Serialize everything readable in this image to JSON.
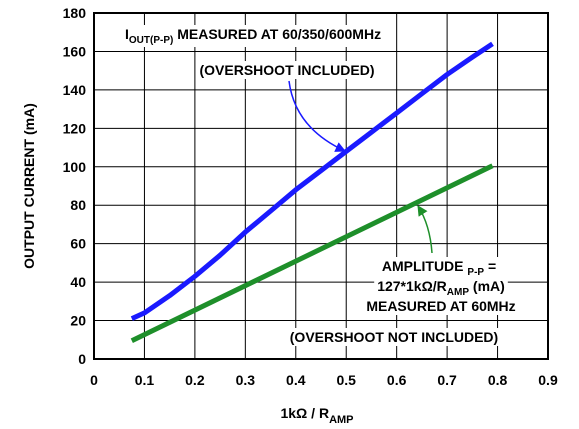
{
  "chart_data": {
    "type": "line",
    "xlabel": {
      "main": "1kΩ / R",
      "sub": "AMP"
    },
    "ylabel": "OUTPUT CURRENT (mA)",
    "xlim": [
      0,
      0.9
    ],
    "ylim": [
      0,
      180
    ],
    "x_ticks": [
      0,
      0.1,
      0.2,
      0.3,
      0.4,
      0.5,
      0.6,
      0.7,
      0.8,
      0.9
    ],
    "x_tick_labels": [
      "0",
      "0.1",
      "0.2",
      "0.3",
      "0.4",
      "0.5",
      "0.6",
      "0.7",
      "0.8",
      "0.9"
    ],
    "y_ticks": [
      0,
      20,
      40,
      60,
      80,
      100,
      120,
      140,
      160,
      180
    ],
    "y_tick_labels": [
      "0",
      "20",
      "40",
      "60",
      "80",
      "100",
      "120",
      "140",
      "160",
      "180"
    ],
    "grid": true,
    "series": [
      {
        "name": "",
        "color": "#1a1aff",
        "x": [
          0.075,
          0.1,
          0.15,
          0.2,
          0.25,
          0.3,
          0.35,
          0.4,
          0.45,
          0.5,
          0.55,
          0.6,
          0.65,
          0.7,
          0.75,
          0.79
        ],
        "y": [
          21,
          24,
          33,
          43,
          54,
          66,
          77,
          88,
          98,
          108,
          118,
          128,
          138,
          148,
          157,
          164
        ]
      },
      {
        "name": "",
        "color": "#1e8f2a",
        "x": [
          0.075,
          0.79
        ],
        "y": [
          9.5,
          100.5
        ]
      }
    ],
    "annotations": [
      {
        "id": "blue",
        "lines": [
          {
            "parts": [
              {
                "text": "I",
                "sub": false
              },
              {
                "text": "OUT(P-P)",
                "sub": true
              },
              {
                "text": " MEASURED AT 60/350/600MHz",
                "sub": false
              }
            ]
          },
          {
            "parts": [
              {
                "text": "(OVERSHOOT INCLUDED)",
                "sub": false
              }
            ]
          }
        ]
      },
      {
        "id": "green",
        "lines": [
          {
            "parts": [
              {
                "text": "AMPLITUDE ",
                "sub": false
              },
              {
                "text": "P-P",
                "sub": true
              },
              {
                "text": " =",
                "sub": false
              }
            ]
          },
          {
            "parts": [
              {
                "text": "127*1kΩ/R",
                "sub": false
              },
              {
                "text": "AMP",
                "sub": true
              },
              {
                "text": " (mA)",
                "sub": false
              }
            ]
          },
          {
            "parts": [
              {
                "text": "MEASURED AT 60MHz",
                "sub": false
              }
            ]
          },
          {
            "parts": [
              {
                "text": "(OVERSHOOT NOT INCLUDED)",
                "sub": false
              }
            ]
          }
        ]
      }
    ]
  }
}
